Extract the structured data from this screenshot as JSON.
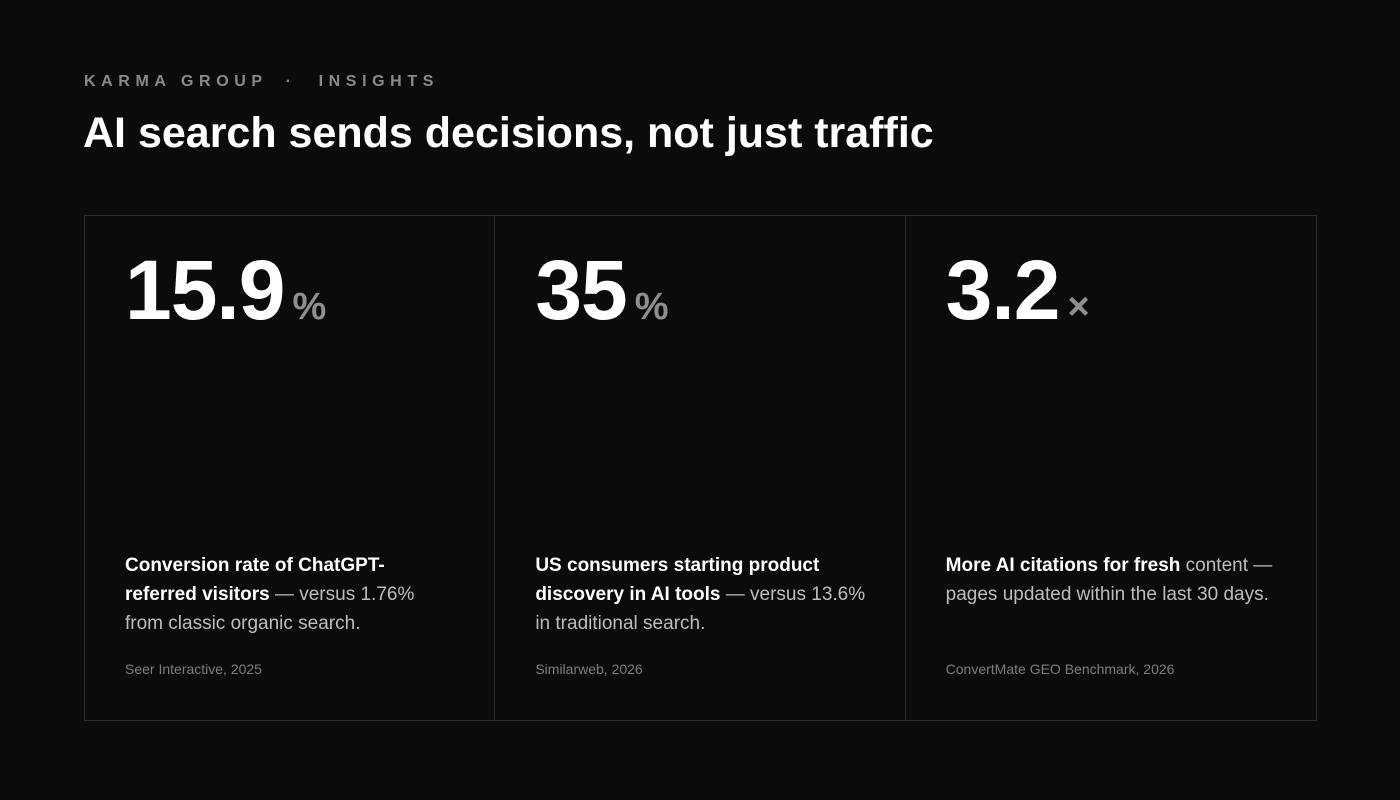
{
  "header": {
    "brand": "KARMA GROUP",
    "separator": "·",
    "section": "INSIGHTS",
    "title": "AI search sends decisions, not just traffic"
  },
  "stats": [
    {
      "value": "15.9",
      "unit": "%",
      "highlight": "Conversion rate of ChatGPT-referred visitors",
      "rest": " — versus 1.76% from classic organic search.",
      "source": "Seer Interactive, 2025"
    },
    {
      "value": "35",
      "unit": "%",
      "highlight": "US consumers starting product discovery in AI tools",
      "rest": " — versus 13.6% in traditional search.",
      "source": "Similarweb, 2026"
    },
    {
      "value": "3.2",
      "unit": "×",
      "highlight": "More AI citations for fresh",
      "rest": " content — pages updated within the last 30 days.",
      "source": "ConvertMate GEO Benchmark, 2026"
    }
  ]
}
